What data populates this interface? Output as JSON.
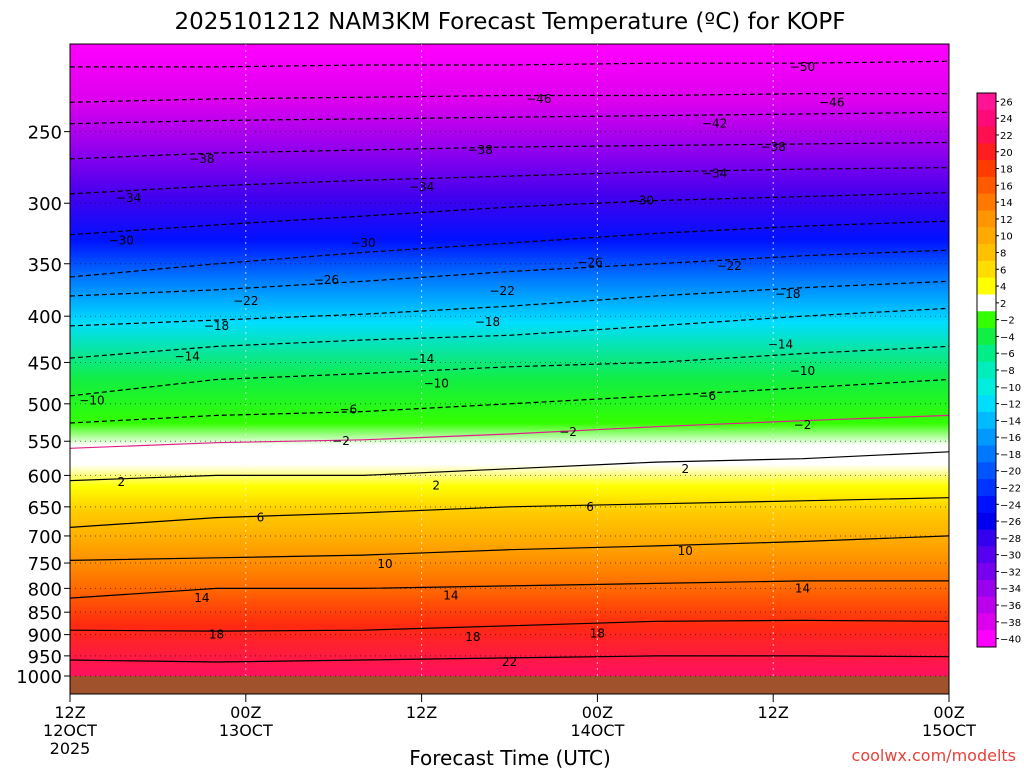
{
  "chart_data": {
    "type": "heatmap",
    "title": "2025101212 NAM3KM Forecast Temperature (ºC) for KOPF",
    "xlabel": "Forecast Time (UTC)",
    "ylabel": "",
    "credit": "coolwx.com/modelts",
    "x_ticks": [
      {
        "hours": 0,
        "line1": "12Z",
        "line2": "12OCT",
        "line3": "2025"
      },
      {
        "hours": 12,
        "line1": "00Z",
        "line2": "13OCT",
        "line3": ""
      },
      {
        "hours": 24,
        "line1": "12Z",
        "line2": "",
        "line3": ""
      },
      {
        "hours": 36,
        "line1": "00Z",
        "line2": "14OCT",
        "line3": ""
      },
      {
        "hours": 48,
        "line1": "12Z",
        "line2": "",
        "line3": ""
      },
      {
        "hours": 60,
        "line1": "00Z",
        "line2": "15OCT",
        "line3": ""
      }
    ],
    "xlim": [
      0,
      60
    ],
    "y_axis": "pressure (hPa), log scale",
    "y_ticks": [
      250,
      300,
      350,
      400,
      450,
      500,
      550,
      600,
      650,
      700,
      750,
      800,
      850,
      900,
      950,
      1000
    ],
    "ylim": [
      1000,
      200
    ],
    "colorbar_labels": [
      26,
      24,
      22,
      20,
      18,
      16,
      14,
      12,
      10,
      8,
      6,
      4,
      2,
      -2,
      -4,
      -6,
      -8,
      -10,
      -12,
      -14,
      -16,
      -18,
      -20,
      -22,
      -24,
      -26,
      -28,
      -30,
      -32,
      -34,
      -36,
      -38,
      -40
    ],
    "colorbar_colors": [
      "#ff1493",
      "#ff0a78",
      "#ff0f50",
      "#ff1e1e",
      "#ff3c00",
      "#ff5a00",
      "#ff7800",
      "#ff9600",
      "#ffaa00",
      "#ffc000",
      "#ffdd00",
      "#ffff00",
      "#ffffff",
      "#33ff00",
      "#11ee44",
      "#00ee88",
      "#00eebb",
      "#00eedd",
      "#00ddff",
      "#00bbff",
      "#0099ff",
      "#0077ff",
      "#0055ff",
      "#0033ff",
      "#0011ff",
      "#0000ee",
      "#3300ee",
      "#5500ee",
      "#7700ee",
      "#9900ee",
      "#bb00ee",
      "#dd00ee",
      "#ff00ff"
    ],
    "series": [
      {
        "name": "-50",
        "pressure": [
          212,
          212,
          211,
          211,
          210,
          210,
          209
        ]
      },
      {
        "name": "-46",
        "pressure": [
          232,
          230,
          229,
          228,
          228,
          227,
          227
        ]
      },
      {
        "name": "-42",
        "pressure": [
          245,
          243,
          242,
          241,
          240,
          239,
          238
        ]
      },
      {
        "name": "-38",
        "pressure": [
          268,
          264,
          262,
          260,
          259,
          258,
          257
        ]
      },
      {
        "name": "-34",
        "pressure": [
          293,
          287,
          283,
          280,
          277,
          275,
          274
        ]
      },
      {
        "name": "-30",
        "pressure": [
          325,
          317,
          310,
          303,
          298,
          295,
          292
        ]
      },
      {
        "name": "-26",
        "pressure": [
          362,
          350,
          340,
          332,
          324,
          318,
          314
        ]
      },
      {
        "name": "-22",
        "pressure": [
          380,
          374,
          366,
          357,
          350,
          343,
          338
        ]
      },
      {
        "name": "-18",
        "pressure": [
          410,
          404,
          398,
          390,
          380,
          372,
          366
        ]
      },
      {
        "name": "-14",
        "pressure": [
          445,
          432,
          425,
          420,
          410,
          400,
          392
        ]
      },
      {
        "name": "-10",
        "pressure": [
          490,
          470,
          463,
          455,
          450,
          440,
          432
        ]
      },
      {
        "name": "-6",
        "pressure": [
          525,
          515,
          510,
          500,
          490,
          480,
          470
        ]
      },
      {
        "name": "-2",
        "pressure": [
          560,
          552,
          548,
          540,
          530,
          522,
          515
        ]
      },
      {
        "name": "2",
        "pressure": [
          608,
          600,
          600,
          590,
          580,
          575,
          565
        ]
      },
      {
        "name": "6",
        "pressure": [
          685,
          668,
          660,
          650,
          645,
          640,
          635
        ]
      },
      {
        "name": "10",
        "pressure": [
          745,
          740,
          735,
          725,
          718,
          710,
          700
        ]
      },
      {
        "name": "14",
        "pressure": [
          820,
          800,
          800,
          795,
          790,
          785,
          785
        ]
      },
      {
        "name": "18",
        "pressure": [
          890,
          892,
          890,
          880,
          870,
          868,
          870
        ]
      },
      {
        "name": "22",
        "pressure": [
          960,
          965,
          960,
          955,
          950,
          950,
          952
        ]
      }
    ],
    "series_hours": [
      0,
      10,
      20,
      30,
      40,
      50,
      60
    ],
    "contour_labels": [
      {
        "text": "-50",
        "hours": 50.0,
        "p": 212
      },
      {
        "text": "-46",
        "hours": 32.0,
        "p": 230
      },
      {
        "text": "-46",
        "hours": 52.0,
        "p": 232
      },
      {
        "text": "-42",
        "hours": 44.0,
        "p": 245
      },
      {
        "text": "-38",
        "hours": 9.0,
        "p": 268
      },
      {
        "text": "-38",
        "hours": 28.0,
        "p": 262
      },
      {
        "text": "-38",
        "hours": 48.0,
        "p": 260
      },
      {
        "text": "-34",
        "hours": 4.0,
        "p": 296
      },
      {
        "text": "-34",
        "hours": 24.0,
        "p": 288
      },
      {
        "text": "-34",
        "hours": 44.0,
        "p": 278
      },
      {
        "text": "-30",
        "hours": 3.5,
        "p": 330
      },
      {
        "text": "-30",
        "hours": 20.0,
        "p": 332
      },
      {
        "text": "-30",
        "hours": 39.0,
        "p": 298
      },
      {
        "text": "-26",
        "hours": 17.5,
        "p": 365
      },
      {
        "text": "-26",
        "hours": 35.5,
        "p": 349
      },
      {
        "text": "-22",
        "hours": 12.0,
        "p": 385
      },
      {
        "text": "-22",
        "hours": 29.5,
        "p": 375
      },
      {
        "text": "-22",
        "hours": 45.0,
        "p": 352
      },
      {
        "text": "-18",
        "hours": 10.0,
        "p": 410
      },
      {
        "text": "-18",
        "hours": 28.5,
        "p": 406
      },
      {
        "text": "-18",
        "hours": 49.0,
        "p": 378
      },
      {
        "text": "-14",
        "hours": 8.0,
        "p": 443
      },
      {
        "text": "-14",
        "hours": 24.0,
        "p": 446
      },
      {
        "text": "-14",
        "hours": 48.5,
        "p": 430
      },
      {
        "text": "-10",
        "hours": 1.5,
        "p": 496
      },
      {
        "text": "-10",
        "hours": 25.0,
        "p": 475
      },
      {
        "text": "-10",
        "hours": 50.0,
        "p": 460
      },
      {
        "text": "-6",
        "hours": 19.0,
        "p": 507
      },
      {
        "text": "-6",
        "hours": 43.5,
        "p": 490
      },
      {
        "text": "-2",
        "hours": 18.5,
        "p": 550
      },
      {
        "text": "-2",
        "hours": 34.0,
        "p": 537
      },
      {
        "text": "-2",
        "hours": 50.0,
        "p": 528
      },
      {
        "text": "2",
        "hours": 3.5,
        "p": 610
      },
      {
        "text": "2",
        "hours": 25.0,
        "p": 616
      },
      {
        "text": "2",
        "hours": 42.0,
        "p": 590
      },
      {
        "text": "6",
        "hours": 13.0,
        "p": 668
      },
      {
        "text": "6",
        "hours": 35.5,
        "p": 650
      },
      {
        "text": "10",
        "hours": 21.5,
        "p": 752
      },
      {
        "text": "10",
        "hours": 42.0,
        "p": 727
      },
      {
        "text": "14",
        "hours": 9.0,
        "p": 820
      },
      {
        "text": "14",
        "hours": 26.0,
        "p": 815
      },
      {
        "text": "14",
        "hours": 50.0,
        "p": 800
      },
      {
        "text": "18",
        "hours": 10.0,
        "p": 900
      },
      {
        "text": "18",
        "hours": 27.5,
        "p": 905
      },
      {
        "text": "18",
        "hours": 36.0,
        "p": 897
      },
      {
        "text": "22",
        "hours": 30.0,
        "p": 965
      }
    ]
  }
}
